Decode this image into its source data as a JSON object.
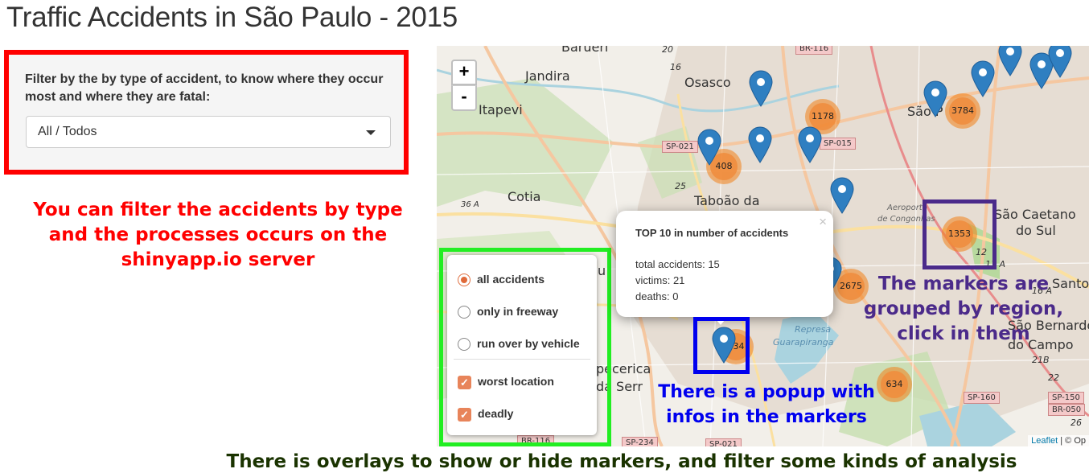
{
  "page": {
    "title": "Traffic Accidents in São Paulo - 2015"
  },
  "filter": {
    "label": "Filter by the by type of accident, to know where they occur most and where they are fatal:",
    "selected": "All / Todos",
    "border_color": "#ff0000"
  },
  "annotations": {
    "filter": "You can filter the accidents by type and the processes occurs on the shinyapp.io server",
    "markers": "The markers are grouped by region, click in them",
    "popup": "There is a popup with infos in the markers",
    "overlays": "There is overlays to show or hide markers, and filter some kinds of analysis",
    "colors": {
      "filter": "#ff0000",
      "markers": "#4b2a8a",
      "popup": "#0000ee",
      "overlays": "#1a3300",
      "layer_box": "#22ee22"
    }
  },
  "map": {
    "zoom_in": "+",
    "zoom_out": "-",
    "places": [
      "Barueri",
      "Jandira",
      "Itapevi",
      "Osasco",
      "São P",
      "Cotia",
      "Taboão da",
      "São Caetano",
      "do Sul",
      "São Bernardo",
      "do Campo",
      "Santo",
      "pecerica",
      "da Serr",
      "Represa",
      "Guarapiranga",
      "Aeroporto",
      "de Congonhas",
      "u"
    ],
    "roads": [
      "BR-116",
      "SP-021",
      "SP-015",
      "36 A",
      "25",
      "16",
      "20",
      "12",
      "13 A",
      "16 A",
      "21B",
      "22",
      "SP-160",
      "SP-150",
      "BR-050",
      "26",
      "BR-116",
      "SP-234",
      "SP-021"
    ],
    "clusters": [
      {
        "count": "1178"
      },
      {
        "count": "3784"
      },
      {
        "count": "408"
      },
      {
        "count": "1353"
      },
      {
        "count": "2675"
      },
      {
        "count": "034"
      },
      {
        "count": "634"
      }
    ],
    "attribution": {
      "leaflet": "Leaflet",
      "rest": "| © Op"
    },
    "cluster_color": "#f18017",
    "marker_color": "#2f7fc1"
  },
  "layers": {
    "base": [
      {
        "label": "all accidents",
        "selected": true
      },
      {
        "label": "only in freeway",
        "selected": false
      },
      {
        "label": "run over by vehicle",
        "selected": false
      }
    ],
    "overlays": [
      {
        "label": "worst location",
        "checked": true
      },
      {
        "label": "deadly",
        "checked": true
      }
    ]
  },
  "popup": {
    "title": "TOP 10 in number of accidents",
    "total": "total accidents: 15",
    "victims": "victims: 21",
    "deaths": "deaths: 0",
    "close": "×"
  }
}
